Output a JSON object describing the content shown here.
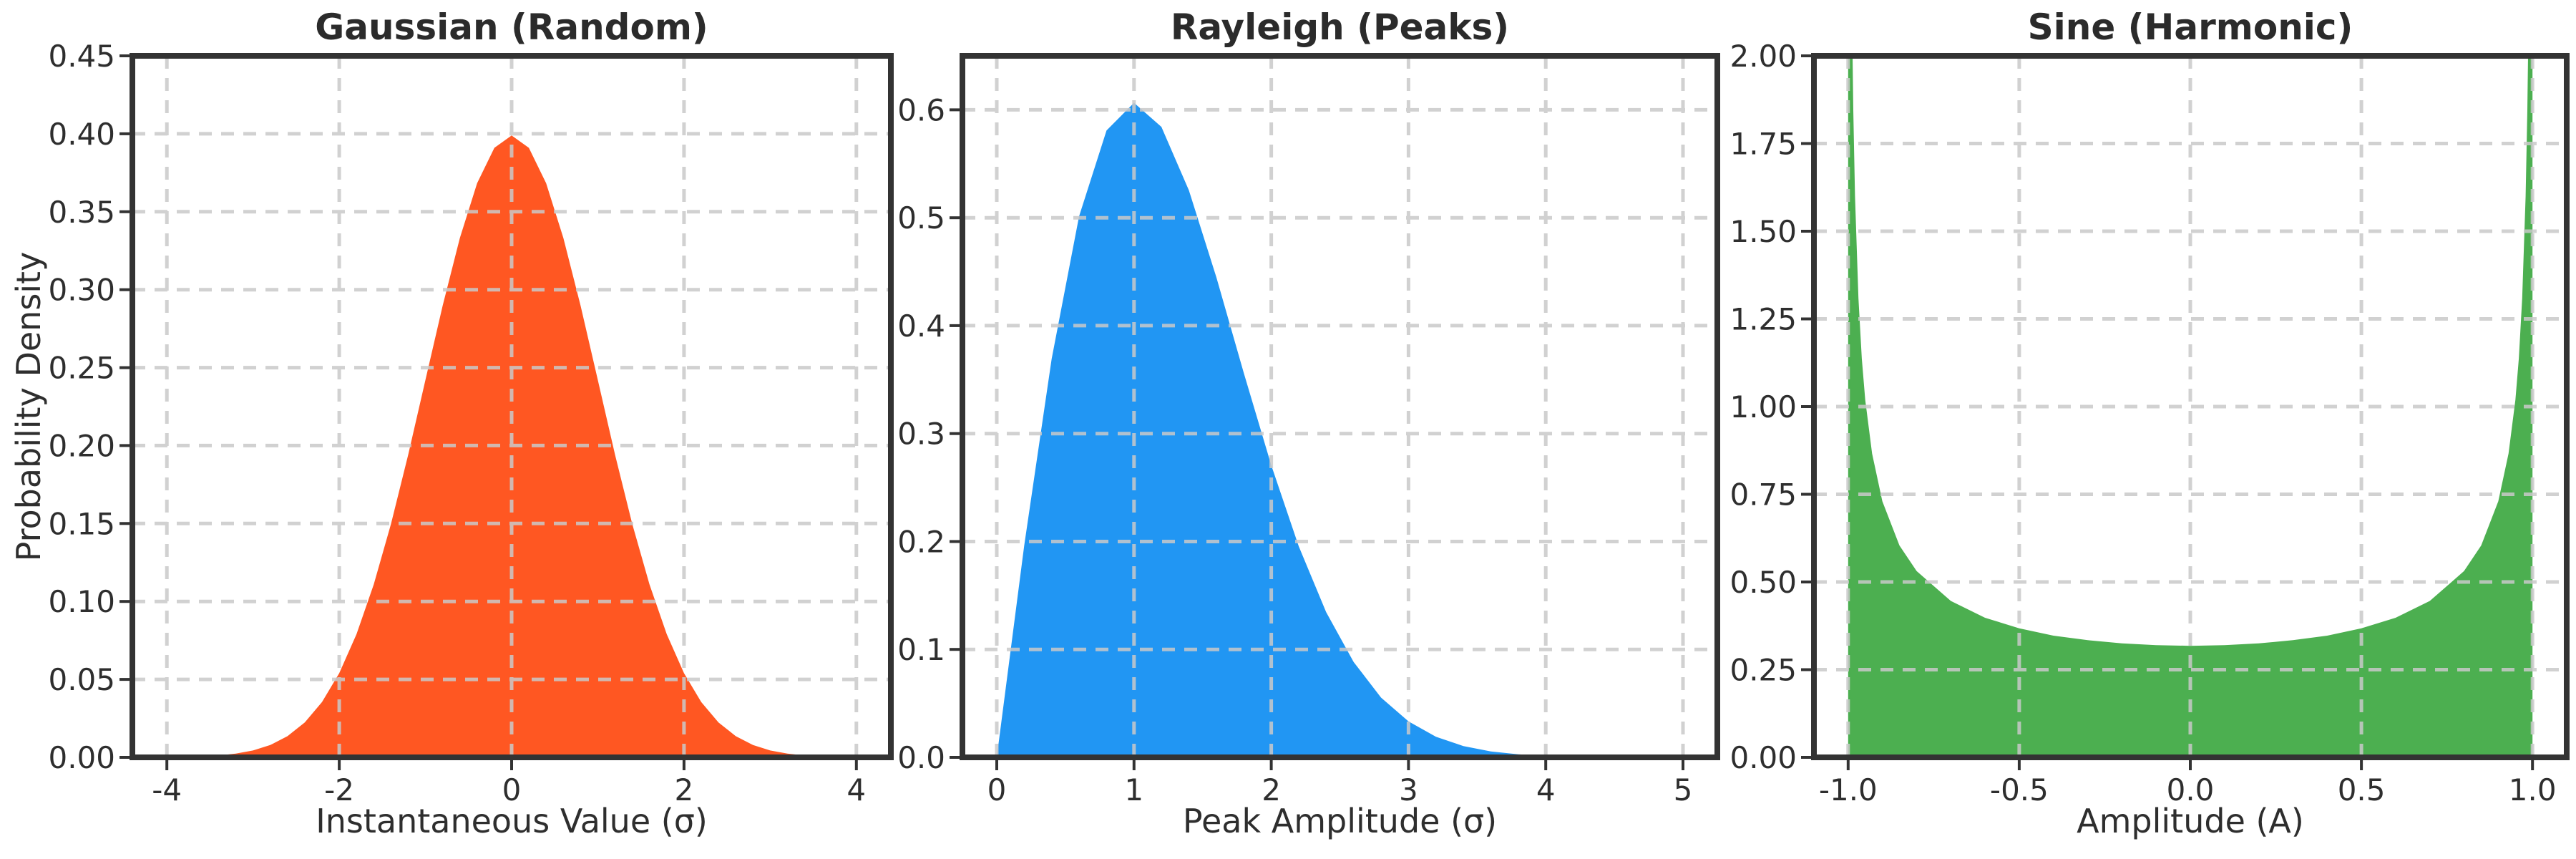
{
  "figure": {
    "background": "#ffffff"
  },
  "style": {
    "spine_color": "#333333",
    "grid_color": "#c9c9c9",
    "grid_opacity": 0.85,
    "tick_color": "#333333",
    "text_color": "#2e2e2e",
    "title_color": "#2b2b2b"
  },
  "chart_data": [
    {
      "id": "gaussian",
      "type": "area",
      "title": "Gaussian (Random)",
      "xlabel": "Instantaneous Value (σ)",
      "ylabel": "Probability Density",
      "fill_color": "#FF5722",
      "grid": true,
      "legend": false,
      "xlim": [
        -4.4,
        4.4
      ],
      "ylim": [
        0,
        0.45
      ],
      "xticks": [
        -4,
        -2,
        0,
        2,
        4
      ],
      "xtick_labels": [
        "-4",
        "-2",
        "0",
        "2",
        "4"
      ],
      "yticks": [
        0.0,
        0.05,
        0.1,
        0.15,
        0.2,
        0.25,
        0.3,
        0.35,
        0.4,
        0.45
      ],
      "ytick_labels": [
        "0.00",
        "0.05",
        "0.10",
        "0.15",
        "0.20",
        "0.25",
        "0.30",
        "0.35",
        "0.40",
        "0.45"
      ],
      "points": [
        [
          -4.0,
          0.0001
        ],
        [
          -3.8,
          0.0003
        ],
        [
          -3.6,
          0.0006
        ],
        [
          -3.4,
          0.0012
        ],
        [
          -3.2,
          0.0024
        ],
        [
          -3.0,
          0.0044
        ],
        [
          -2.8,
          0.0079
        ],
        [
          -2.6,
          0.0136
        ],
        [
          -2.4,
          0.0224
        ],
        [
          -2.2,
          0.0355
        ],
        [
          -2.0,
          0.054
        ],
        [
          -1.8,
          0.079
        ],
        [
          -1.6,
          0.1109
        ],
        [
          -1.4,
          0.1497
        ],
        [
          -1.2,
          0.1942
        ],
        [
          -1.0,
          0.242
        ],
        [
          -0.8,
          0.2897
        ],
        [
          -0.6,
          0.3332
        ],
        [
          -0.4,
          0.3683
        ],
        [
          -0.2,
          0.391
        ],
        [
          0.0,
          0.3989
        ],
        [
          0.2,
          0.391
        ],
        [
          0.4,
          0.3683
        ],
        [
          0.6,
          0.3332
        ],
        [
          0.8,
          0.2897
        ],
        [
          1.0,
          0.242
        ],
        [
          1.2,
          0.1942
        ],
        [
          1.4,
          0.1497
        ],
        [
          1.6,
          0.1109
        ],
        [
          1.8,
          0.079
        ],
        [
          2.0,
          0.054
        ],
        [
          2.2,
          0.0355
        ],
        [
          2.4,
          0.0224
        ],
        [
          2.6,
          0.0136
        ],
        [
          2.8,
          0.0079
        ],
        [
          3.0,
          0.0044
        ],
        [
          3.2,
          0.0024
        ],
        [
          3.4,
          0.0012
        ],
        [
          3.6,
          0.0006
        ],
        [
          3.8,
          0.0003
        ],
        [
          4.0,
          0.0001
        ]
      ]
    },
    {
      "id": "rayleigh",
      "type": "area",
      "title": "Rayleigh (Peaks)",
      "xlabel": "Peak Amplitude (σ)",
      "ylabel": "",
      "fill_color": "#2196F3",
      "grid": true,
      "legend": false,
      "xlim": [
        -0.25,
        5.25
      ],
      "ylim": [
        0,
        0.65
      ],
      "xticks": [
        0,
        1,
        2,
        3,
        4,
        5
      ],
      "xtick_labels": [
        "0",
        "1",
        "2",
        "3",
        "4",
        "5"
      ],
      "yticks": [
        0.0,
        0.1,
        0.2,
        0.3,
        0.4,
        0.5,
        0.6
      ],
      "ytick_labels": [
        "0.0",
        "0.1",
        "0.2",
        "0.3",
        "0.4",
        "0.5",
        "0.6"
      ],
      "points": [
        [
          0.0,
          0.0
        ],
        [
          0.2,
          0.196
        ],
        [
          0.4,
          0.3692
        ],
        [
          0.6,
          0.5012
        ],
        [
          0.8,
          0.5809
        ],
        [
          1.0,
          0.6065
        ],
        [
          1.2,
          0.5842
        ],
        [
          1.4,
          0.5254
        ],
        [
          1.6,
          0.4448
        ],
        [
          1.8,
          0.3562
        ],
        [
          2.0,
          0.2707
        ],
        [
          2.2,
          0.1956
        ],
        [
          2.4,
          0.1346
        ],
        [
          2.6,
          0.0884
        ],
        [
          2.8,
          0.0554
        ],
        [
          3.0,
          0.0333
        ],
        [
          3.2,
          0.0191
        ],
        [
          3.4,
          0.0105
        ],
        [
          3.6,
          0.0055
        ],
        [
          3.8,
          0.0028
        ],
        [
          4.0,
          0.0013
        ],
        [
          4.2,
          0.0006
        ],
        [
          4.4,
          0.0003
        ],
        [
          4.6,
          0.0001
        ],
        [
          4.8,
          0.0001
        ],
        [
          5.0,
          0.0
        ]
      ]
    },
    {
      "id": "sine",
      "type": "area",
      "title": "Sine (Harmonic)",
      "xlabel": "Amplitude (A)",
      "ylabel": "",
      "fill_color": "#4CAF50",
      "grid": true,
      "legend": false,
      "xlim": [
        -1.1,
        1.1
      ],
      "ylim": [
        0,
        2.0
      ],
      "xticks": [
        -1.0,
        -0.5,
        0.0,
        0.5,
        1.0
      ],
      "xtick_labels": [
        "-1.0",
        "-0.5",
        "0.0",
        "0.5",
        "1.0"
      ],
      "yticks": [
        0.0,
        0.25,
        0.5,
        0.75,
        1.0,
        1.25,
        1.5,
        1.75,
        2.0
      ],
      "ytick_labels": [
        "0.00",
        "0.25",
        "0.50",
        "0.75",
        "1.00",
        "1.25",
        "1.50",
        "1.75",
        "2.00"
      ],
      "points": [
        [
          -1.0,
          2.0
        ],
        [
          -0.995,
          2.0
        ],
        [
          -0.99,
          2.0
        ],
        [
          -0.987,
          2.0
        ],
        [
          -0.985,
          1.845
        ],
        [
          -0.98,
          1.6
        ],
        [
          -0.97,
          1.309
        ],
        [
          -0.96,
          1.137
        ],
        [
          -0.95,
          1.019
        ],
        [
          -0.93,
          0.866
        ],
        [
          -0.9,
          0.73
        ],
        [
          -0.85,
          0.604
        ],
        [
          -0.8,
          0.531
        ],
        [
          -0.7,
          0.446
        ],
        [
          -0.6,
          0.398
        ],
        [
          -0.5,
          0.368
        ],
        [
          -0.4,
          0.347
        ],
        [
          -0.3,
          0.334
        ],
        [
          -0.2,
          0.325
        ],
        [
          -0.1,
          0.32
        ],
        [
          0.0,
          0.318
        ],
        [
          0.1,
          0.32
        ],
        [
          0.2,
          0.325
        ],
        [
          0.3,
          0.334
        ],
        [
          0.4,
          0.347
        ],
        [
          0.5,
          0.368
        ],
        [
          0.6,
          0.398
        ],
        [
          0.7,
          0.446
        ],
        [
          0.8,
          0.531
        ],
        [
          0.85,
          0.604
        ],
        [
          0.9,
          0.73
        ],
        [
          0.93,
          0.866
        ],
        [
          0.95,
          1.019
        ],
        [
          0.96,
          1.137
        ],
        [
          0.97,
          1.309
        ],
        [
          0.98,
          1.6
        ],
        [
          0.985,
          1.845
        ],
        [
          0.987,
          2.0
        ],
        [
          0.99,
          2.0
        ],
        [
          0.995,
          2.0
        ],
        [
          1.0,
          2.0
        ]
      ]
    }
  ]
}
